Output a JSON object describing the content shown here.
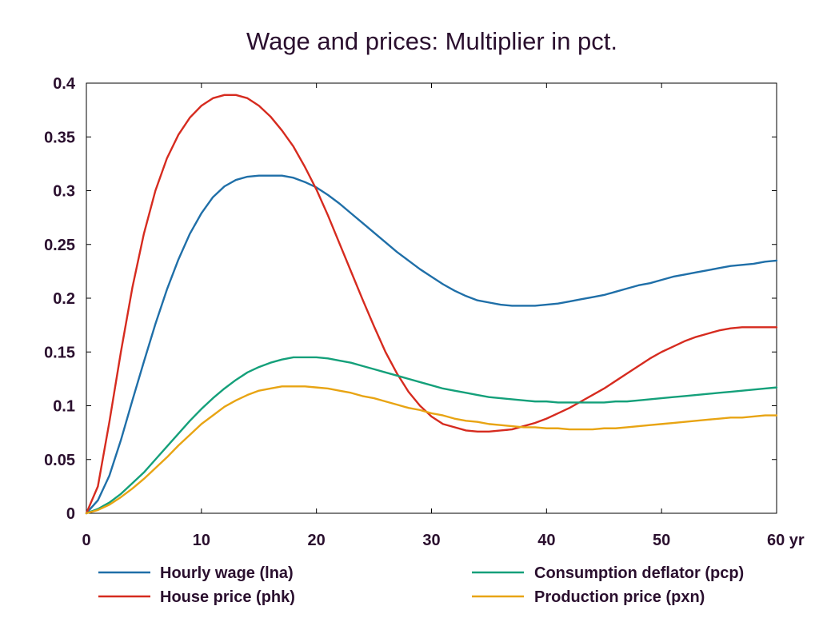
{
  "chart_data": {
    "type": "line",
    "title": "Wage and prices: Multiplier in pct.",
    "x_unit_label": "yr",
    "xlim": [
      0,
      60
    ],
    "ylim": [
      0,
      0.4
    ],
    "x_ticks": [
      0,
      10,
      20,
      30,
      40,
      50,
      60
    ],
    "y_ticks": [
      0,
      0.05,
      0.1,
      0.15,
      0.2,
      0.25,
      0.3,
      0.35,
      0.4
    ],
    "x_tick_labels": [
      "0",
      "10",
      "20",
      "30",
      "40",
      "50",
      "60 yr"
    ],
    "y_tick_labels": [
      "0",
      "0.05",
      "0.1",
      "0.15",
      "0.2",
      "0.25",
      "0.3",
      "0.35",
      "0.4"
    ],
    "grid": false,
    "legend_position": "bottom",
    "x": [
      0,
      1,
      2,
      3,
      4,
      5,
      6,
      7,
      8,
      9,
      10,
      11,
      12,
      13,
      14,
      15,
      16,
      17,
      18,
      19,
      20,
      21,
      22,
      23,
      24,
      25,
      26,
      27,
      28,
      29,
      30,
      31,
      32,
      33,
      34,
      35,
      36,
      37,
      38,
      39,
      40,
      41,
      42,
      43,
      44,
      45,
      46,
      47,
      48,
      49,
      50,
      51,
      52,
      53,
      54,
      55,
      56,
      57,
      58,
      59,
      60
    ],
    "series": [
      {
        "name": "Hourly wage (lna)",
        "color": "#1f6fa8",
        "values": [
          0.0,
          0.012,
          0.035,
          0.068,
          0.105,
          0.141,
          0.176,
          0.208,
          0.236,
          0.26,
          0.279,
          0.294,
          0.304,
          0.31,
          0.313,
          0.314,
          0.314,
          0.314,
          0.312,
          0.308,
          0.303,
          0.296,
          0.288,
          0.279,
          0.27,
          0.261,
          0.252,
          0.243,
          0.235,
          0.227,
          0.22,
          0.213,
          0.207,
          0.202,
          0.198,
          0.196,
          0.194,
          0.193,
          0.193,
          0.193,
          0.194,
          0.195,
          0.197,
          0.199,
          0.201,
          0.203,
          0.206,
          0.209,
          0.212,
          0.214,
          0.217,
          0.22,
          0.222,
          0.224,
          0.226,
          0.228,
          0.23,
          0.231,
          0.232,
          0.234,
          0.235
        ]
      },
      {
        "name": "House price (phk)",
        "color": "#d62b1f",
        "values": [
          0.0,
          0.025,
          0.085,
          0.15,
          0.21,
          0.26,
          0.3,
          0.33,
          0.352,
          0.368,
          0.379,
          0.386,
          0.389,
          0.389,
          0.386,
          0.379,
          0.369,
          0.356,
          0.341,
          0.322,
          0.301,
          0.277,
          0.251,
          0.225,
          0.199,
          0.174,
          0.15,
          0.13,
          0.113,
          0.1,
          0.09,
          0.083,
          0.08,
          0.077,
          0.076,
          0.076,
          0.077,
          0.078,
          0.081,
          0.084,
          0.088,
          0.093,
          0.098,
          0.104,
          0.11,
          0.116,
          0.123,
          0.13,
          0.137,
          0.144,
          0.15,
          0.155,
          0.16,
          0.164,
          0.167,
          0.17,
          0.172,
          0.173,
          0.173,
          0.173,
          0.173
        ]
      },
      {
        "name": "Consumption deflator (pcp)",
        "color": "#14a07a",
        "values": [
          0.0,
          0.004,
          0.01,
          0.018,
          0.028,
          0.038,
          0.05,
          0.062,
          0.074,
          0.086,
          0.097,
          0.107,
          0.116,
          0.124,
          0.131,
          0.136,
          0.14,
          0.143,
          0.145,
          0.145,
          0.145,
          0.144,
          0.142,
          0.14,
          0.137,
          0.134,
          0.131,
          0.128,
          0.125,
          0.122,
          0.119,
          0.116,
          0.114,
          0.112,
          0.11,
          0.108,
          0.107,
          0.106,
          0.105,
          0.104,
          0.104,
          0.103,
          0.103,
          0.103,
          0.103,
          0.103,
          0.104,
          0.104,
          0.105,
          0.106,
          0.107,
          0.108,
          0.109,
          0.11,
          0.111,
          0.112,
          0.113,
          0.114,
          0.115,
          0.116,
          0.117
        ]
      },
      {
        "name": "Production price (pxn)",
        "color": "#e8a413",
        "values": [
          0.0,
          0.003,
          0.008,
          0.015,
          0.023,
          0.032,
          0.042,
          0.052,
          0.063,
          0.073,
          0.083,
          0.091,
          0.099,
          0.105,
          0.11,
          0.114,
          0.116,
          0.118,
          0.118,
          0.118,
          0.117,
          0.116,
          0.114,
          0.112,
          0.109,
          0.107,
          0.104,
          0.101,
          0.098,
          0.096,
          0.093,
          0.091,
          0.088,
          0.086,
          0.085,
          0.083,
          0.082,
          0.081,
          0.08,
          0.08,
          0.079,
          0.079,
          0.078,
          0.078,
          0.078,
          0.079,
          0.079,
          0.08,
          0.081,
          0.082,
          0.083,
          0.084,
          0.085,
          0.086,
          0.087,
          0.088,
          0.089,
          0.089,
          0.09,
          0.091,
          0.091
        ]
      }
    ]
  }
}
